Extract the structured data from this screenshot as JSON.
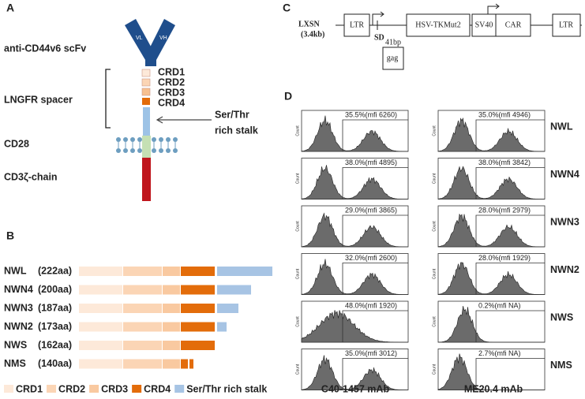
{
  "panel_a": {
    "label": "A",
    "scfv": "anti-CD44v6 scFv",
    "vl": "VL",
    "vh": "VH",
    "spacer": "LNGFR spacer",
    "domains": [
      "CRD1",
      "CRD2",
      "CRD3",
      "CRD4"
    ],
    "stalk": [
      "Ser/Thr",
      "rich stalk"
    ],
    "cd28": "CD28",
    "cd3": "CD3ζ-chain"
  },
  "panel_b": {
    "label": "B",
    "rows": [
      {
        "name": "NWL",
        "length": "(222aa)"
      },
      {
        "name": "NWN4",
        "length": "(200aa)"
      },
      {
        "name": "NWN3",
        "length": "(187aa)"
      },
      {
        "name": "NWN2",
        "length": "(173aa)"
      },
      {
        "name": "NWS",
        "length": "(162aa)"
      },
      {
        "name": "NMS",
        "length": "(140aa)"
      }
    ],
    "legend": [
      "CRD1",
      "CRD2",
      "CRD3",
      "CRD4",
      "Ser/Thr rich stalk"
    ]
  },
  "panel_c": {
    "label": "C",
    "vector": "LXSN",
    "size": "(3.4kb)",
    "ltr_left": "LTR",
    "sd": "SD",
    "bp": "41bp",
    "gag": "gag",
    "tk": "HSV-TKMut2",
    "sv40": "SV40",
    "car": "CAR",
    "ltr_right": "LTR"
  },
  "panel_d": {
    "label": "D",
    "y_axis": "Count",
    "x_labels": [
      "C40-1457  mAb",
      "ME20.4  mAb"
    ],
    "rows": [
      {
        "name": "NWL",
        "left": "35.5%(mfi 6260)",
        "right": "35.0%(mfi 4946)"
      },
      {
        "name": "NWN4",
        "left": "38.0%(mfi 4895)",
        "right": "38.0%(mfi 3842)"
      },
      {
        "name": "NWN3",
        "left": "29.0%(mfi 3865)",
        "right": "28.0%(mfi 2979)"
      },
      {
        "name": "NWN2",
        "left": "32.0%(mfi 2600)",
        "right": "28.0%(mfi 1929)"
      },
      {
        "name": "NWS",
        "left": "48.0%(mfi 1920)",
        "right": "0.2%(mfi NA)"
      },
      {
        "name": "NMS",
        "left": "35.0%(mfi 3012)",
        "right": "2.7%(mfi NA)"
      }
    ]
  }
}
